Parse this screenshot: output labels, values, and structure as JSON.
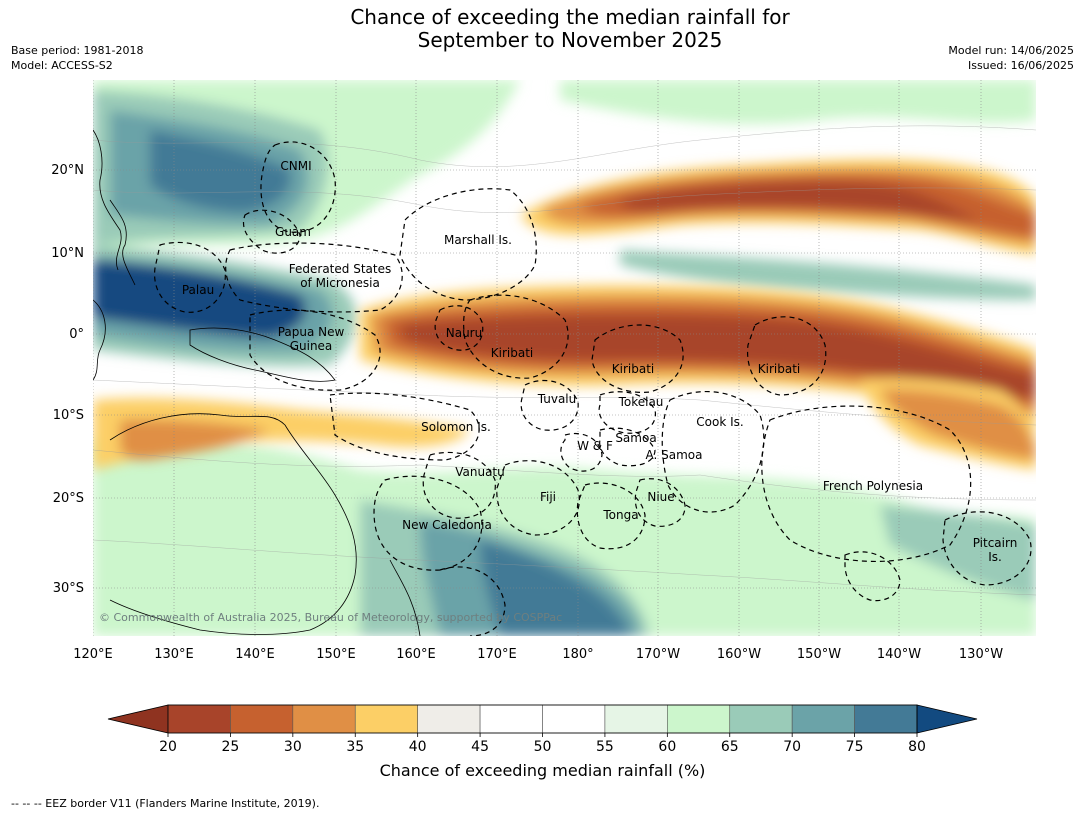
{
  "title_line1": "Chance of exceeding the median rainfall for",
  "title_line2": "September to November 2025",
  "base_period": "Base period: 1981-2018",
  "model": "Model: ACCESS-S2",
  "model_run": "Model run: 14/06/2025",
  "issued": "Issued: 16/06/2025",
  "lon_labels": [
    "120°E",
    "130°E",
    "140°E",
    "150°E",
    "160°E",
    "170°E",
    "180°",
    "170°W",
    "160°W",
    "150°W",
    "140°W",
    "130°W"
  ],
  "lat_labels": [
    "20°N",
    "10°N",
    "0°",
    "10°S",
    "20°S",
    "30°S"
  ],
  "places": [
    {
      "name": "CNMI",
      "lines": [
        "CNMI"
      ]
    },
    {
      "name": "Guam",
      "lines": [
        "Guam"
      ]
    },
    {
      "name": "Marshall Is.",
      "lines": [
        "Marshall Is."
      ]
    },
    {
      "name": "Federated States of Micronesia",
      "lines": [
        "Federated States",
        "of Micronesia"
      ]
    },
    {
      "name": "Palau",
      "lines": [
        "Palau"
      ]
    },
    {
      "name": "Nauru",
      "lines": [
        "Nauru"
      ]
    },
    {
      "name": "Kiribati",
      "lines": [
        "Kiribati"
      ]
    },
    {
      "name": "Kiribati",
      "lines": [
        "Kiribati"
      ]
    },
    {
      "name": "Kiribati",
      "lines": [
        "Kiribati"
      ]
    },
    {
      "name": "Papua New Guinea",
      "lines": [
        "Papua New",
        "Guinea"
      ]
    },
    {
      "name": "Tuvalu",
      "lines": [
        "Tuvalu"
      ]
    },
    {
      "name": "Tokelau",
      "lines": [
        "Tokelau"
      ]
    },
    {
      "name": "Cook Is.",
      "lines": [
        "Cook Is."
      ]
    },
    {
      "name": "Solomon Is.",
      "lines": [
        "Solomon Is."
      ]
    },
    {
      "name": "Samoa",
      "lines": [
        "Samoa"
      ]
    },
    {
      "name": "W & F",
      "lines": [
        "W & F"
      ]
    },
    {
      "name": "A. Samoa",
      "lines": [
        "A. Samoa"
      ]
    },
    {
      "name": "Vanuatu",
      "lines": [
        "Vanuatu"
      ]
    },
    {
      "name": "French Polynesia",
      "lines": [
        "French Polynesia"
      ]
    },
    {
      "name": "Fiji",
      "lines": [
        "Fiji"
      ]
    },
    {
      "name": "Niue",
      "lines": [
        "Niue"
      ]
    },
    {
      "name": "Tonga",
      "lines": [
        "Tonga"
      ]
    },
    {
      "name": "New Caledonia",
      "lines": [
        "New Caledonia"
      ]
    },
    {
      "name": "Pitcairn Is.",
      "lines": [
        "Pitcairn",
        "Is."
      ]
    }
  ],
  "copyright": "© Commonwealth of Australia 2025, Bureau of Meteorology, supported by COSPPac",
  "colorbar": {
    "ticks": [
      "20",
      "25",
      "30",
      "35",
      "40",
      "45",
      "50",
      "55",
      "60",
      "65",
      "70",
      "75",
      "80"
    ],
    "colors": [
      "#a8442a",
      "#c6612f",
      "#e08f45",
      "#fccf66",
      "#efede8",
      "#ffffff",
      "#ffffff",
      "#e6f5e6",
      "#ccf6cc",
      "#9acbb8",
      "#6ba3a8",
      "#437a96"
    ],
    "low_extend_color": "#8f3320",
    "high_extend_color": "#124a80",
    "caption": "Chance of exceeding median rainfall (%)"
  },
  "footnote": "--  --  -- EEZ border V11 (Flanders Marine Institute, 2019)."
}
